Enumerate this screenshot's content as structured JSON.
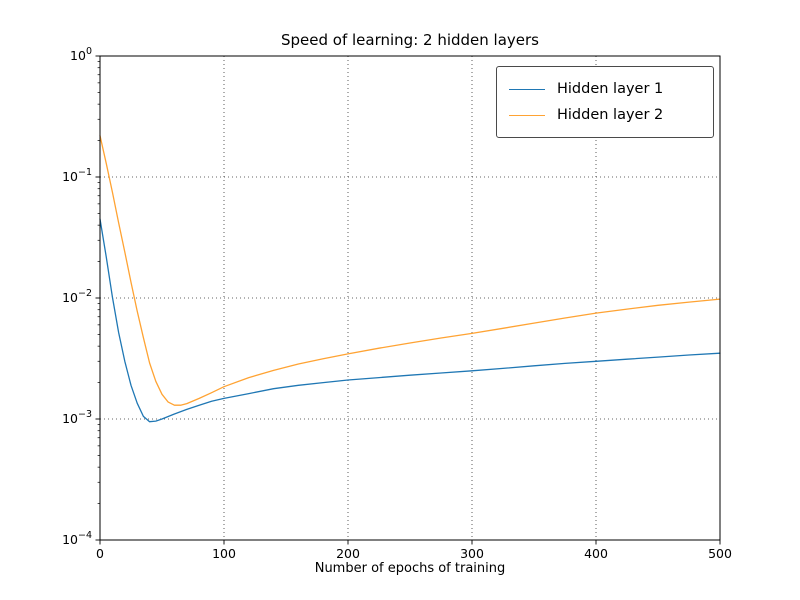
{
  "chart_data": {
    "type": "line",
    "title": "Speed of learning: 2 hidden layers",
    "xlabel": "Number of epochs of training",
    "ylabel": "",
    "xlim": [
      0,
      500
    ],
    "y_scale": "log",
    "log_ylim": [
      -4,
      0
    ],
    "x_ticks": [
      0,
      100,
      200,
      300,
      400,
      500
    ],
    "y_tick_exponents": [
      -4,
      -3,
      -2,
      -1,
      0
    ],
    "grid": true,
    "grid_style": "dotted",
    "legend_position": "upper right",
    "series": [
      {
        "name": "Hidden layer 1",
        "color": "#1f77b4",
        "points": [
          [
            0,
            0.045
          ],
          [
            5,
            0.022
          ],
          [
            10,
            0.0102
          ],
          [
            15,
            0.0052
          ],
          [
            20,
            0.003
          ],
          [
            25,
            0.0019
          ],
          [
            30,
            0.00135
          ],
          [
            35,
            0.00105
          ],
          [
            40,
            0.00095
          ],
          [
            45,
            0.00096
          ],
          [
            50,
            0.001
          ],
          [
            60,
            0.0011
          ],
          [
            70,
            0.0012
          ],
          [
            80,
            0.0013
          ],
          [
            90,
            0.0014
          ],
          [
            100,
            0.00148
          ],
          [
            120,
            0.00162
          ],
          [
            140,
            0.00178
          ],
          [
            160,
            0.0019
          ],
          [
            180,
            0.002
          ],
          [
            200,
            0.0021
          ],
          [
            225,
            0.0022
          ],
          [
            250,
            0.0023
          ],
          [
            275,
            0.0024
          ],
          [
            300,
            0.0025
          ],
          [
            325,
            0.00262
          ],
          [
            350,
            0.00275
          ],
          [
            375,
            0.00288
          ],
          [
            400,
            0.003
          ],
          [
            425,
            0.00312
          ],
          [
            450,
            0.00325
          ],
          [
            475,
            0.00338
          ],
          [
            500,
            0.0035
          ]
        ]
      },
      {
        "name": "Hidden layer 2",
        "color": "#ffa333",
        "points": [
          [
            0,
            0.22
          ],
          [
            5,
            0.13
          ],
          [
            10,
            0.075
          ],
          [
            15,
            0.042
          ],
          [
            20,
            0.024
          ],
          [
            25,
            0.0135
          ],
          [
            30,
            0.0078
          ],
          [
            35,
            0.0047
          ],
          [
            40,
            0.0029
          ],
          [
            45,
            0.00205
          ],
          [
            50,
            0.0016
          ],
          [
            55,
            0.00138
          ],
          [
            60,
            0.0013
          ],
          [
            65,
            0.0013
          ],
          [
            70,
            0.00134
          ],
          [
            80,
            0.00148
          ],
          [
            90,
            0.00165
          ],
          [
            100,
            0.00185
          ],
          [
            120,
            0.0022
          ],
          [
            140,
            0.00252
          ],
          [
            160,
            0.00285
          ],
          [
            180,
            0.00315
          ],
          [
            200,
            0.00345
          ],
          [
            225,
            0.00385
          ],
          [
            250,
            0.00425
          ],
          [
            275,
            0.00467
          ],
          [
            300,
            0.0051
          ],
          [
            325,
            0.00562
          ],
          [
            350,
            0.0062
          ],
          [
            375,
            0.00683
          ],
          [
            400,
            0.0075
          ],
          [
            425,
            0.0081
          ],
          [
            450,
            0.0087
          ],
          [
            475,
            0.00925
          ],
          [
            500,
            0.0098
          ]
        ]
      }
    ]
  }
}
